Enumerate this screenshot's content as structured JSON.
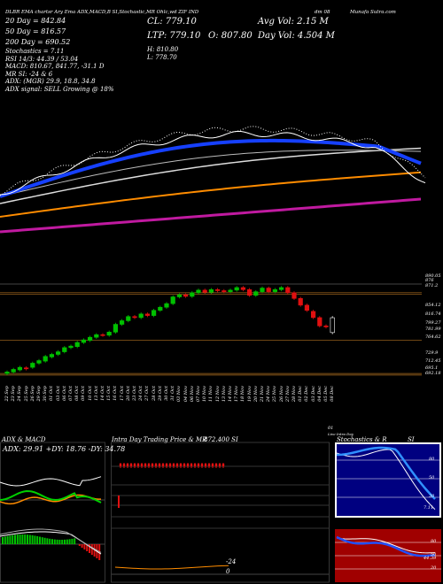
{
  "header": {
    "top_line": "DLBR EMA chartsr  Ary Ema  ADX,MACD,B  SI,Stochastic,MR  Ohlc,wd  ZIF IND",
    "ticker_line": "CL: 779.10  DLBR",
    "site": "Munafa Sutra.com",
    "date_tag": "dm 08",
    "stats_left": [
      "20  Day = 842.84",
      "50  Day = 816.57",
      "200  Day = 690.52",
      "Stochastics = 7.11",
      "RSI 14/3: 44.39 / 53.04",
      "MACD: 810.67,  841.77,  -31.1 D",
      "MR            SI: -24  &  6",
      "ADX:          (MGR) 29.9,  18.8,  34.8",
      "ADX  signal: SELL Growing @ 18%"
    ],
    "close": "CL: 779.10",
    "ltp": "LTP: 779.10",
    "open": "O: 807.80",
    "high": "H: 810.80",
    "low": "L: 778.70",
    "avg_vol": "Avg Vol: 2.15  M",
    "day_vol": "Day Vol: 4.504  M"
  },
  "candle_panel": {
    "price_labels": [
      "890.05",
      "876",
      "871.2",
      "854.12",
      "816.74",
      "799.27",
      "781.99",
      "764.62",
      "729.9",
      "712.45",
      "695.1",
      "692.18"
    ],
    "date_labels": [
      "22 Sep",
      "23 Sep",
      "24 Sep",
      "25 Sep",
      "26 Sep",
      "29 Sep",
      "30 Sep",
      "01 Oct",
      "03 Oct",
      "06 Oct",
      "07 Oct",
      "08 Oct",
      "09 Oct",
      "10 Oct",
      "13 Oct",
      "14 Oct",
      "15 Oct",
      "16 Oct",
      "17 Oct",
      "20 Oct",
      "23 Oct",
      "24 Oct",
      "27 Oct",
      "28 Oct",
      "29 Oct",
      "30 Oct",
      "31 Oct",
      "03 Nov",
      "04 Nov",
      "06 Nov",
      "07 Nov",
      "10 Nov",
      "11 Nov",
      "12 Nov",
      "13 Nov",
      "14 Nov",
      "17 Nov",
      "18 Nov",
      "19 Nov",
      "20 Nov",
      "21 Nov",
      "24 Nov",
      "25 Nov",
      "26 Nov",
      "27 Nov",
      "28 Nov",
      "01 Dec",
      "02 Dec",
      "03 Dec",
      "04 Dec",
      "05 Dec",
      "08 Dec"
    ],
    "tail_label": "01",
    "tail_sub": "Live  Intra  Day"
  },
  "panels": {
    "adx_title": "ADX  & MACD",
    "adx_values": "ADX: 29.91  +DY: 18.76  -DY: 34.78",
    "intraday_title": "Intra  Day  Trading Price  &  MR",
    "intraday_value": "872.400  SI",
    "intraday_marker": "-24",
    "intraday_zero": "0",
    "stoch_title": "Stochastics & R",
    "stoch_si": "SI",
    "stoch_labels": [
      "80",
      "50",
      "20"
    ],
    "stoch_value": "7.11",
    "rsi_labels": [
      "80",
      "50",
      "20"
    ],
    "rsi_value": "44.39"
  },
  "chart_data": {
    "type": "line",
    "title": "DLBR EMA charts",
    "series": [
      {
        "name": "20 Day EMA",
        "values": [
          842.84
        ]
      },
      {
        "name": "50 Day EMA",
        "values": [
          816.57
        ]
      },
      {
        "name": "200 Day EMA",
        "values": [
          690.52
        ]
      }
    ],
    "candles": [
      {
        "o": 700,
        "c": 703
      },
      {
        "o": 703,
        "c": 708
      },
      {
        "o": 707,
        "c": 712
      },
      {
        "o": 711,
        "c": 709
      },
      {
        "o": 712,
        "c": 720
      },
      {
        "o": 720,
        "c": 725
      },
      {
        "o": 724,
        "c": 733
      },
      {
        "o": 732,
        "c": 737
      },
      {
        "o": 737,
        "c": 742
      },
      {
        "o": 742,
        "c": 750
      },
      {
        "o": 750,
        "c": 753
      },
      {
        "o": 752,
        "c": 760
      },
      {
        "o": 760,
        "c": 765
      },
      {
        "o": 764,
        "c": 770
      },
      {
        "o": 770,
        "c": 775
      },
      {
        "o": 775,
        "c": 774
      },
      {
        "o": 774,
        "c": 780
      },
      {
        "o": 780,
        "c": 795
      },
      {
        "o": 795,
        "c": 802
      },
      {
        "o": 802,
        "c": 810
      },
      {
        "o": 810,
        "c": 808
      },
      {
        "o": 808,
        "c": 815
      },
      {
        "o": 815,
        "c": 812
      },
      {
        "o": 812,
        "c": 822
      },
      {
        "o": 822,
        "c": 828
      },
      {
        "o": 828,
        "c": 835
      },
      {
        "o": 835,
        "c": 848
      },
      {
        "o": 848,
        "c": 852
      },
      {
        "o": 852,
        "c": 849
      },
      {
        "o": 849,
        "c": 856
      },
      {
        "o": 856,
        "c": 861
      },
      {
        "o": 861,
        "c": 857
      },
      {
        "o": 857,
        "c": 862
      },
      {
        "o": 862,
        "c": 860
      },
      {
        "o": 860,
        "c": 858
      },
      {
        "o": 858,
        "c": 861
      },
      {
        "o": 861,
        "c": 866
      },
      {
        "o": 866,
        "c": 862
      },
      {
        "o": 862,
        "c": 851
      },
      {
        "o": 851,
        "c": 858
      },
      {
        "o": 858,
        "c": 865
      },
      {
        "o": 865,
        "c": 858
      },
      {
        "o": 858,
        "c": 862
      },
      {
        "o": 862,
        "c": 866
      },
      {
        "o": 866,
        "c": 856
      },
      {
        "o": 856,
        "c": 845
      },
      {
        "o": 845,
        "c": 832
      },
      {
        "o": 832,
        "c": 822
      },
      {
        "o": 820,
        "c": 808
      },
      {
        "o": 808,
        "c": 792
      },
      {
        "o": 792,
        "c": 790
      },
      {
        "o": 807.8,
        "c": 779.1
      }
    ],
    "ylim": [
      690,
      895
    ]
  }
}
